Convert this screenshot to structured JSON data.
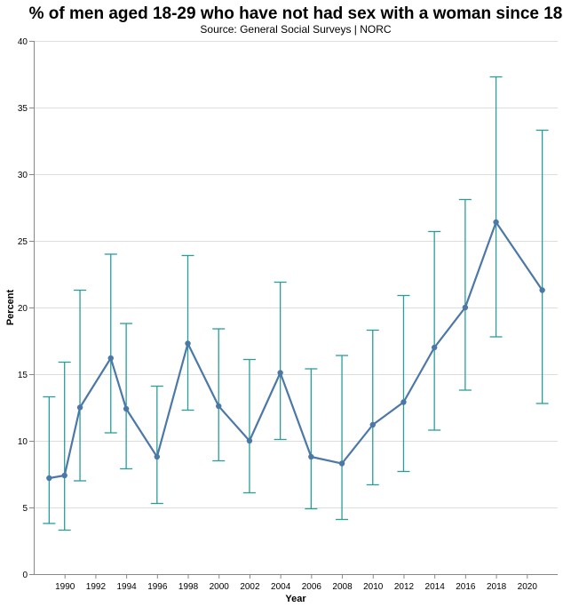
{
  "chart_data": {
    "type": "line",
    "title": "% of men aged 18-29 who have not had sex with a woman since 18",
    "subtitle": "Source: General Social Surveys | NORC",
    "xlabel": "Year",
    "ylabel": "Percent",
    "xlim": [
      1988,
      2022
    ],
    "ylim": [
      0,
      40
    ],
    "grid": true,
    "x_ticks": [
      1990,
      1992,
      1994,
      1996,
      1998,
      2000,
      2002,
      2004,
      2006,
      2008,
      2010,
      2012,
      2014,
      2016,
      2018,
      2020
    ],
    "y_ticks": [
      0,
      5,
      10,
      15,
      20,
      25,
      30,
      35,
      40
    ],
    "series": [
      {
        "name": "Percent",
        "color": "#4c78a8",
        "x": [
          1989,
          1990,
          1991,
          1993,
          1994,
          1996,
          1998,
          2000,
          2002,
          2004,
          2006,
          2008,
          2010,
          2012,
          2014,
          2016,
          2018,
          2021
        ],
        "values": [
          7.2,
          7.4,
          12.5,
          16.2,
          12.4,
          8.8,
          17.3,
          12.6,
          10.0,
          15.1,
          8.8,
          8.3,
          11.2,
          12.9,
          17.0,
          20.0,
          26.4,
          21.3
        ],
        "lower": [
          3.8,
          3.3,
          7.0,
          10.6,
          7.9,
          5.3,
          12.3,
          8.5,
          6.1,
          10.1,
          4.9,
          4.1,
          6.7,
          7.7,
          10.8,
          13.8,
          17.8,
          12.8
        ],
        "upper": [
          13.3,
          15.9,
          21.3,
          24.0,
          18.8,
          14.1,
          23.9,
          18.4,
          16.1,
          21.9,
          15.4,
          16.4,
          18.3,
          20.9,
          25.7,
          28.1,
          37.3,
          33.3
        ]
      }
    ],
    "errorbar_color": "#2a9d9a"
  }
}
